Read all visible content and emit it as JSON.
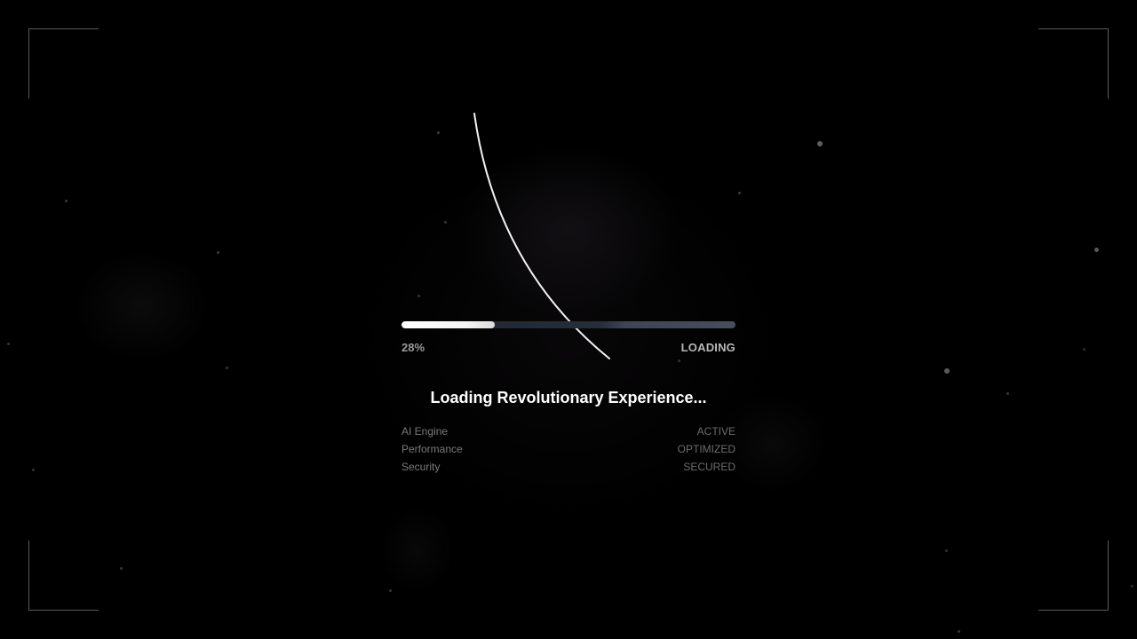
{
  "loader": {
    "progress_percent": 28,
    "progress_label": "28%",
    "status_text": "LOADING",
    "title": "Loading Revolutionary Experience..."
  },
  "system_status": [
    {
      "label": "AI Engine",
      "value": "ACTIVE"
    },
    {
      "label": "Performance",
      "value": "OPTIMIZED"
    },
    {
      "label": "Security",
      "value": "SECURED"
    }
  ],
  "colors": {
    "background": "#000000",
    "progress_fill": "#ffffff",
    "progress_track": "#262e3a",
    "title_text": "#ffffff",
    "muted_text": "#7a7a7a"
  }
}
